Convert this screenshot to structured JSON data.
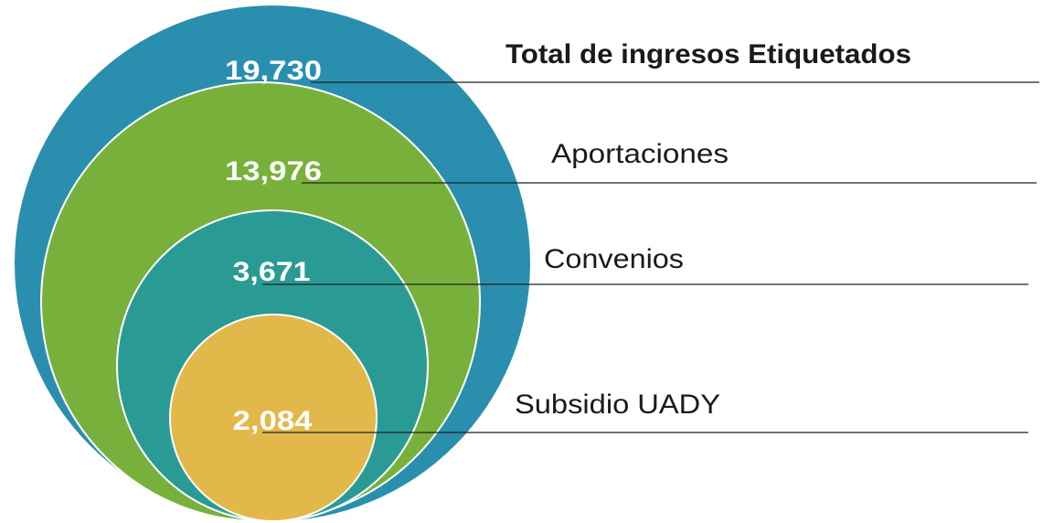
{
  "title": "Total de ingresos Etiquetados",
  "items": [
    {
      "label": "Total de ingresos Etiquetados",
      "value": "19,730"
    },
    {
      "label": "Aportaciones",
      "value": "13,976"
    },
    {
      "label": "Convenios",
      "value": "3,671"
    },
    {
      "label": "Subsidio UADY",
      "value": "2,084"
    }
  ]
}
